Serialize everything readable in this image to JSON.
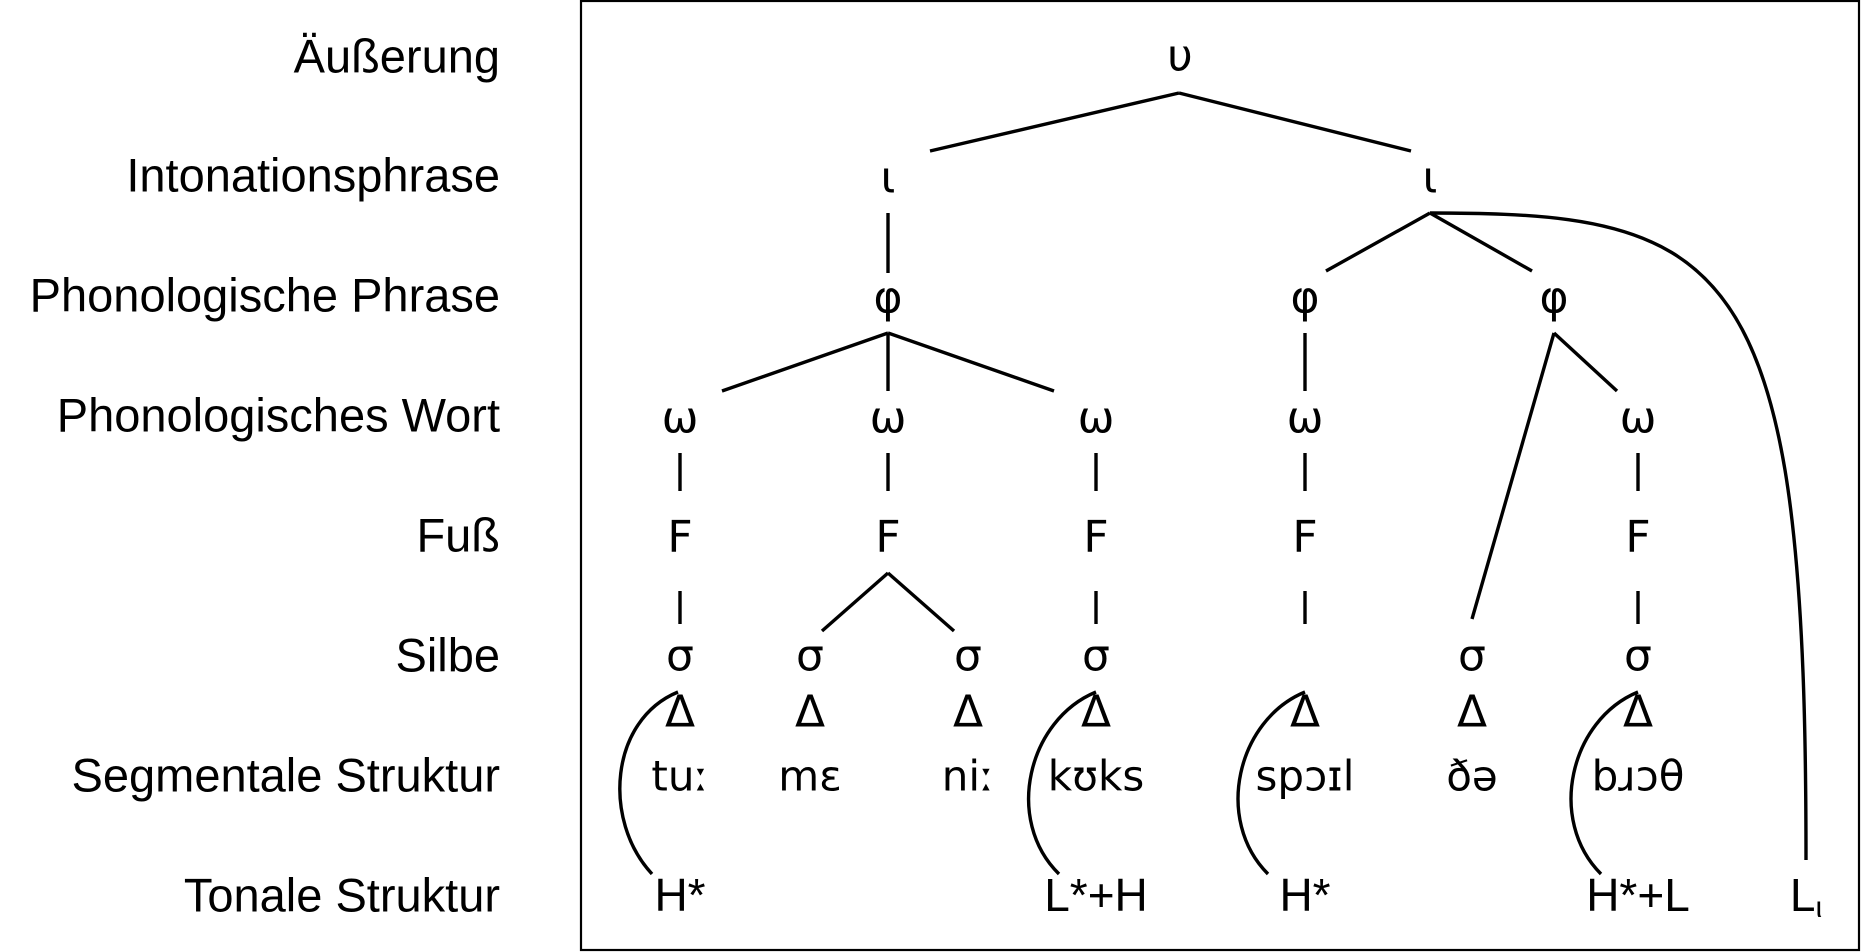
{
  "levels": {
    "utterance": "Äußerung",
    "intonation_phrase": "Intonationsphrase",
    "phonological_phrase": "Phonologische Phrase",
    "phonological_word": "Phonologisches Wort",
    "foot": "Fuß",
    "syllable": "Silbe",
    "segmental": "Segmentale Struktur",
    "tonal": "Tonale Struktur"
  },
  "symbols": {
    "utterance": "υ",
    "intonation_phrase": "ι",
    "phonological_phrase": "φ",
    "phonological_word": "ω",
    "foot": "F",
    "syllable": "σ",
    "syllable_content": "Δ"
  },
  "segments": [
    "tuː",
    "mɛ",
    "niː",
    "kʊks",
    "spɔɪl",
    "ðə",
    "bɹɔθ"
  ],
  "tones": [
    "H*",
    "L*+H",
    "H*",
    "H*+L",
    "L"
  ],
  "boundary_tone_subscript": "ι"
}
